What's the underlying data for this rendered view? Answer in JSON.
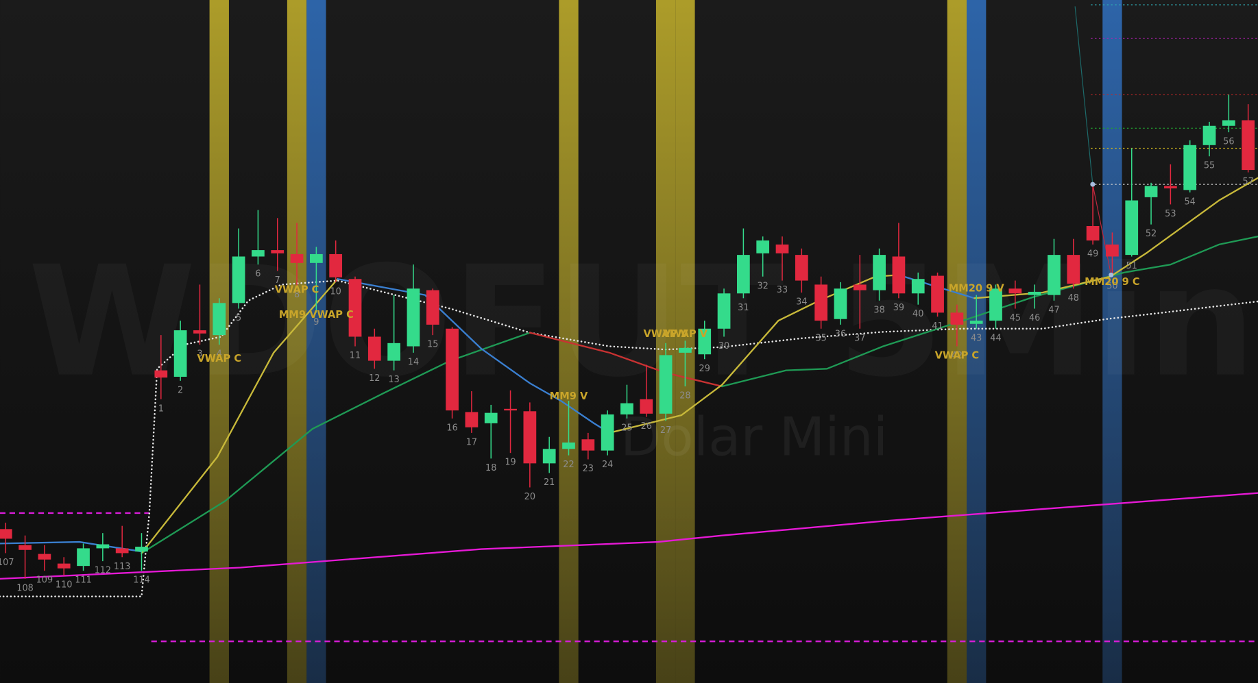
{
  "chart_data": {
    "type": "candlestick",
    "watermark": "WDOFUT 5Min",
    "subtitle": "Dolar Mini",
    "categories": [
      "107",
      "108",
      "109",
      "110",
      "111",
      "112",
      "113",
      "114",
      "1",
      "2",
      "3",
      "4",
      "5",
      "6",
      "7",
      "8",
      "9",
      "10",
      "11",
      "12",
      "13",
      "14",
      "15",
      "16",
      "17",
      "18",
      "19",
      "20",
      "21",
      "22",
      "23",
      "24",
      "25",
      "26",
      "27",
      "28",
      "29",
      "30",
      "31",
      "32",
      "33",
      "34",
      "35",
      "36",
      "37",
      "38",
      "39",
      "40",
      "41",
      "42",
      "43",
      "44",
      "45",
      "46",
      "47",
      "48",
      "49",
      "50",
      "51",
      "52",
      "53",
      "54",
      "55",
      "56",
      "57"
    ],
    "open": [
      192,
      172,
      161,
      149,
      146,
      168,
      168,
      164,
      390,
      382,
      440,
      434,
      474,
      532,
      540,
      535,
      524,
      535,
      504,
      432,
      402,
      420,
      490,
      442,
      338,
      324,
      342,
      339,
      274,
      292,
      304,
      290,
      335,
      354,
      336,
      412,
      410,
      442,
      486,
      536,
      547,
      534,
      497,
      454,
      497,
      490,
      532,
      486,
      508,
      462,
      448,
      452,
      492,
      484,
      484,
      534,
      570,
      547,
      534,
      606,
      620,
      615,
      671,
      695,
      702
    ],
    "high": [
      200,
      184,
      172,
      157,
      174,
      187,
      196,
      187,
      434,
      452,
      497,
      480,
      567,
      590,
      580,
      574,
      544,
      552,
      507,
      442,
      484,
      522,
      492,
      444,
      364,
      347,
      365,
      350,
      307,
      352,
      312,
      340,
      372,
      397,
      424,
      427,
      452,
      492,
      567,
      557,
      557,
      542,
      507,
      500,
      534,
      542,
      574,
      512,
      512,
      472,
      484,
      497,
      502,
      497,
      554,
      554,
      620,
      562,
      667,
      624,
      647,
      677,
      700,
      734,
      722
    ],
    "low": [
      162,
      130,
      140,
      134,
      140,
      152,
      157,
      140,
      354,
      377,
      422,
      422,
      467,
      522,
      514,
      496,
      462,
      500,
      420,
      392,
      390,
      412,
      434,
      330,
      312,
      280,
      287,
      244,
      262,
      284,
      279,
      284,
      330,
      332,
      327,
      370,
      404,
      432,
      480,
      507,
      502,
      487,
      442,
      447,
      442,
      477,
      480,
      472,
      457,
      420,
      442,
      442,
      467,
      467,
      477,
      492,
      547,
      507,
      532,
      572,
      597,
      612,
      657,
      687,
      637
    ],
    "close": [
      180,
      166,
      154,
      143,
      168,
      173,
      162,
      170,
      381,
      440,
      436,
      474,
      532,
      540,
      536,
      524,
      535,
      506,
      432,
      402,
      424,
      492,
      447,
      340,
      319,
      337,
      340,
      274,
      292,
      300,
      290,
      335,
      349,
      336,
      409,
      418,
      442,
      486,
      534,
      552,
      536,
      502,
      452,
      492,
      490,
      534,
      486,
      504,
      462,
      447,
      452,
      492,
      486,
      488,
      534,
      498,
      552,
      532,
      602,
      620,
      617,
      671,
      695,
      702,
      640
    ],
    "up_color": "#34db8b",
    "down_color": "#e2283f",
    "ylim": [
      0,
      852
    ],
    "lines": [
      {
        "color": "#e6e6e6",
        "style": "dotted",
        "x": [
          -0.3,
          7.0,
          7.4,
          7.8,
          9.2,
          11.1,
          12.5,
          14.2,
          17.1,
          20.4,
          22.9,
          27.0,
          31.1,
          34.0,
          36.9,
          41.0,
          45.2,
          49.3,
          53.4,
          56.7,
          59.6,
          64.5
        ],
        "values": [
          108,
          108,
          212,
          392,
          422,
          432,
          477,
          497,
          502,
          482,
          467,
          437,
          420,
          416,
          419,
          430,
          438,
          442,
          442,
          454,
          462,
          476
        ]
      },
      {
        "color": "#e619d6",
        "x": [
          -0.3,
          12.1,
          24.5,
          33.6,
          36.9,
          45.2,
          53.4,
          64.5
        ],
        "values": [
          130,
          144,
          167,
          176,
          184,
          202,
          217,
          237
        ]
      },
      {
        "color": "#3a7fd0",
        "x": [
          -0.3,
          3.8,
          7.0
        ],
        "values": [
          174,
          176,
          164
        ]
      },
      {
        "color": "#1f9a55",
        "x": [
          7.0,
          11.3,
          15.8,
          19.5,
          22.9,
          27.0
        ],
        "values": [
          162,
          227,
          317,
          362,
          402,
          437
        ]
      },
      {
        "color": "#c83232",
        "x": [
          27.0,
          31.1,
          34.0,
          36.9
        ],
        "values": [
          437,
          412,
          387,
          370
        ]
      },
      {
        "color": "#1f9a55",
        "x": [
          36.9,
          40.2,
          42.3,
          45.2,
          49.3,
          53.0,
          57.6,
          60.0,
          62.5,
          64.5
        ],
        "values": [
          370,
          390,
          392,
          420,
          452,
          482,
          512,
          522,
          547,
          557
        ]
      },
      {
        "color": "#c8b93a",
        "x": [
          7.0,
          10.9,
          13.8,
          17.1
        ],
        "values": [
          162,
          282,
          412,
          504
        ]
      },
      {
        "color": "#3a7fd0",
        "x": [
          17.1,
          21.6,
          24.5,
          27.0,
          28.6,
          30.3,
          31.1
        ],
        "values": [
          504,
          484,
          417,
          374,
          352,
          324,
          312
        ]
      },
      {
        "color": "#c8b93a",
        "x": [
          31.1,
          34.8,
          36.9,
          39.8,
          41.9,
          44.8,
          46.0
        ],
        "values": [
          312,
          334,
          372,
          452,
          477,
          507,
          509
        ]
      },
      {
        "color": "#3a7fd0",
        "x": [
          46.0,
          47.6,
          49.9
        ],
        "values": [
          509,
          497,
          480
        ]
      },
      {
        "color": "#c8b93a",
        "x": [
          49.9,
          53.4,
          56.9,
          58.8,
          62.5,
          64.5
        ],
        "values": [
          480,
          487,
          507,
          537,
          602,
          630
        ]
      }
    ],
    "bands": [
      {
        "category": "4",
        "color": "#b4a32a"
      },
      {
        "category": "8",
        "color": "#b4a32a"
      },
      {
        "category": "9",
        "color": "#2e68b0"
      },
      {
        "category": "22",
        "color": "#b4a32a"
      },
      {
        "category": "27",
        "color": "#b4a32a"
      },
      {
        "category": "28",
        "color": "#b4a32a"
      },
      {
        "category": "42",
        "color": "#b4a32a"
      },
      {
        "category": "43",
        "color": "#2e68b0"
      },
      {
        "category": "50",
        "color": "#2e68b0"
      }
    ],
    "levels": [
      {
        "value": 212,
        "color": "#d81cd8",
        "style": "dashed",
        "x": [
          -0.3,
          7.4
        ]
      },
      {
        "value": 52,
        "color": "#d81cd8",
        "style": "dashed",
        "x": [
          7.5,
          64.8
        ]
      },
      {
        "value": 846,
        "color": "#2fa7b0",
        "style": "dotted",
        "x": [
          55.9,
          64.8
        ]
      },
      {
        "value": 804,
        "color": "#b020b0",
        "style": "dotted",
        "x": [
          55.9,
          64.8
        ]
      },
      {
        "value": 734,
        "color": "#c02828",
        "style": "dotted",
        "x": [
          55.9,
          64.8
        ]
      },
      {
        "value": 692,
        "color": "#20a030",
        "style": "dotted",
        "x": [
          55.9,
          64.8
        ]
      },
      {
        "value": 667,
        "color": "#c8b020",
        "style": "dotted",
        "x": [
          55.9,
          64.8
        ]
      },
      {
        "value": 622,
        "color": "#d0d0d0",
        "style": "dotted",
        "x": [
          55.9,
          64.8
        ]
      }
    ],
    "annotations": [
      {
        "text": "VWAP C",
        "category": "4",
        "value": 404
      },
      {
        "text": "VWAP C",
        "category": "8",
        "value": 490
      },
      {
        "text": "MM9 VWAP C",
        "category": "9",
        "value": 459
      },
      {
        "text": "MM9 V",
        "category": "22",
        "value": 357
      },
      {
        "text": "VWAP V",
        "category": "27",
        "value": 435
      },
      {
        "text": "VWAP V",
        "category": "28",
        "value": 435
      },
      {
        "text": "VWAP C",
        "category": "42",
        "value": 408
      },
      {
        "text": "MM20 9 V",
        "category": "43",
        "value": 492
      },
      {
        "text": "MM20 9 C",
        "category": "50",
        "value": 500
      }
    ]
  }
}
